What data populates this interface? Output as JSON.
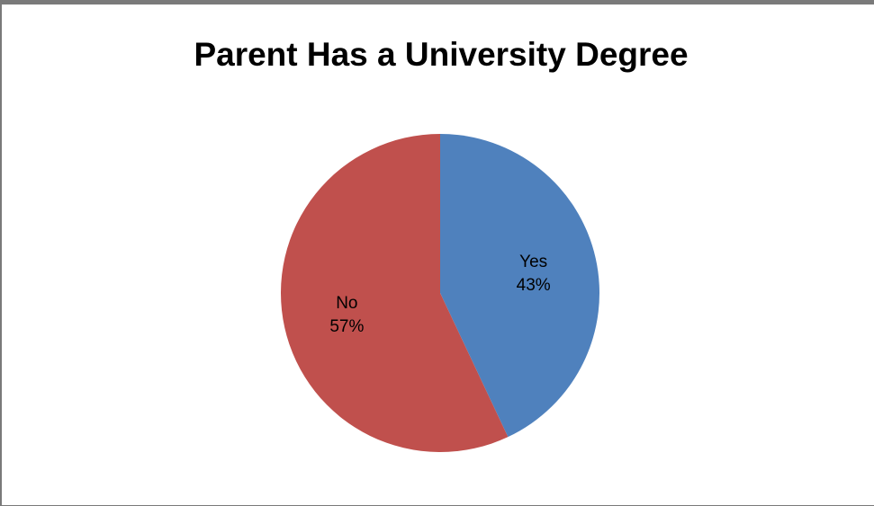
{
  "chart_data": {
    "type": "pie",
    "title": "Parent Has a University Degree",
    "slices": [
      {
        "label": "Yes",
        "percent_label": "43%",
        "value": 43,
        "color": "#4f81bd"
      },
      {
        "label": "No",
        "percent_label": "57%",
        "value": 57,
        "color": "#c0504d"
      }
    ],
    "start_angle_deg": 0,
    "direction": "clockwise",
    "legend": "none",
    "data_labels": "inside"
  }
}
